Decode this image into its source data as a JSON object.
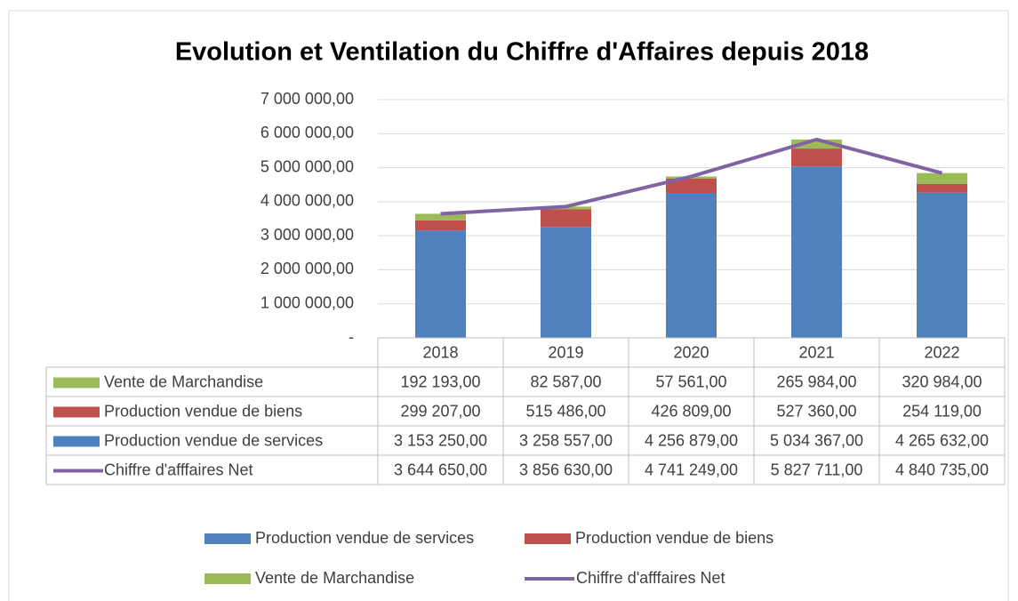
{
  "chart_data": {
    "type": "bar",
    "stacked": true,
    "title": "Evolution et Ventilation du Chiffre d'Affaires depuis 2018",
    "categories": [
      "2018",
      "2019",
      "2020",
      "2021",
      "2022"
    ],
    "ylim": [
      0,
      7000000
    ],
    "yticks": [
      {
        "value": 0,
        "label": "-"
      },
      {
        "value": 1000000,
        "label": "1 000 000,00"
      },
      {
        "value": 2000000,
        "label": "2 000 000,00"
      },
      {
        "value": 3000000,
        "label": "3 000 000,00"
      },
      {
        "value": 4000000,
        "label": "4 000 000,00"
      },
      {
        "value": 5000000,
        "label": "5 000 000,00"
      },
      {
        "value": 6000000,
        "label": "6 000 000,00"
      },
      {
        "value": 7000000,
        "label": "7 000 000,00"
      }
    ],
    "grid": true,
    "series": [
      {
        "name": "Production vendue de services",
        "color": "#4f81bd",
        "type": "bar",
        "values": [
          3153250,
          3258557,
          4256879,
          5034367,
          4265632
        ],
        "value_labels": [
          "3 153 250,00",
          "3 258 557,00",
          "4 256 879,00",
          "5 034 367,00",
          "4 265 632,00"
        ]
      },
      {
        "name": "Production vendue de biens",
        "color": "#c0504d",
        "type": "bar",
        "values": [
          299207,
          515486,
          426809,
          527360,
          254119
        ],
        "value_labels": [
          "299 207,00",
          "515 486,00",
          "426 809,00",
          "527 360,00",
          "254 119,00"
        ]
      },
      {
        "name": "Vente de Marchandise",
        "color": "#9bbb59",
        "type": "bar",
        "values": [
          192193,
          82587,
          57561,
          265984,
          320984
        ],
        "value_labels": [
          "192 193,00",
          "82 587,00",
          "57 561,00",
          "265 984,00",
          "320 984,00"
        ]
      },
      {
        "name": "Chiffre d'afffaires Net",
        "color": "#8064a2",
        "type": "line",
        "values": [
          3644650,
          3856630,
          4741249,
          5827711,
          4840735
        ],
        "value_labels": [
          "3 644 650,00",
          "3 856 630,00",
          "4 741 249,00",
          "5 827 711,00",
          "4 840 735,00"
        ]
      }
    ]
  }
}
